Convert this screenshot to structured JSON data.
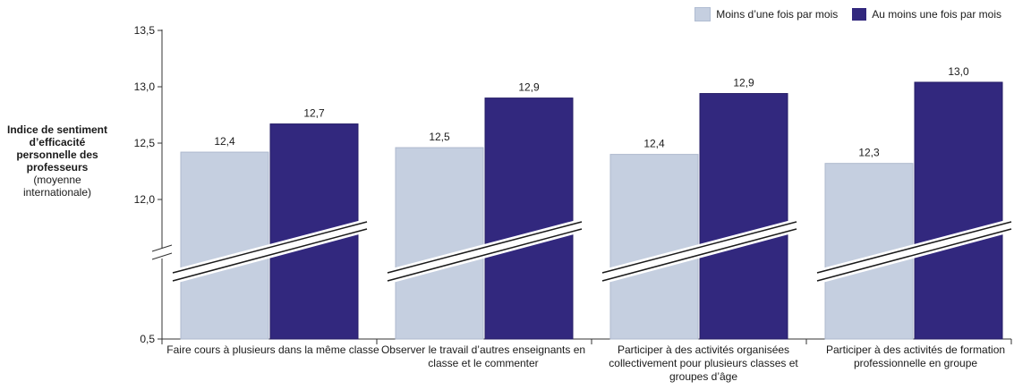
{
  "chart_data": {
    "type": "bar",
    "title": "",
    "ylabel_bold": "Indice de sentiment d’efficacité personnelle des professeurs",
    "ylabel_normal": "(moyenne internationale)",
    "y_ticks": [
      "13,5",
      "13,0",
      "12,5",
      "12,0",
      "0,5"
    ],
    "ylim": [
      11.5,
      13.5
    ],
    "axis_break": true,
    "categories": [
      "Faire cours à plusieurs dans la même classe",
      "Observer le travail d’autres enseignants en classe et le commenter",
      "Participer à des activités organisées collectivement pour plusieurs classes et groupes d’âge",
      "Participer à des activités de formation professionnelle en groupe"
    ],
    "series": [
      {
        "name": "Moins d’une fois par mois",
        "color": "#c5cfe0",
        "values": [
          12.42,
          12.46,
          12.4,
          12.32
        ],
        "labels": [
          "12,4",
          "12,5",
          "12,4",
          "12,3"
        ]
      },
      {
        "name": "Au moins une fois par mois",
        "color": "#32287e",
        "values": [
          12.67,
          12.9,
          12.94,
          13.04
        ],
        "labels": [
          "12,7",
          "12,9",
          "12,9",
          "13,0"
        ]
      }
    ],
    "legend_position": "top-right"
  }
}
